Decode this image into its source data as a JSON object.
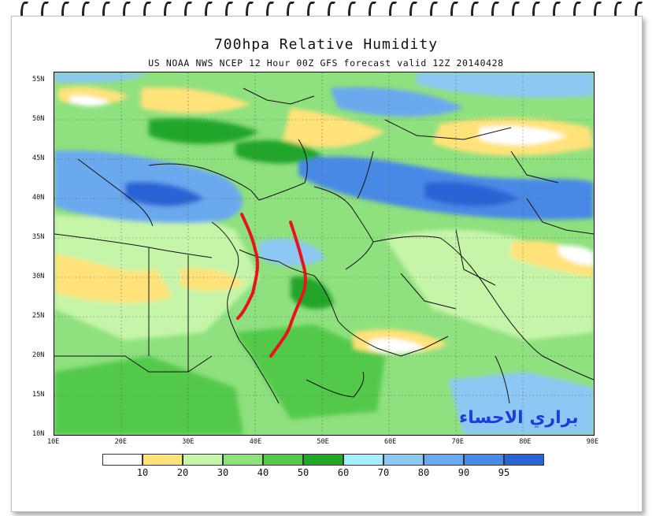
{
  "title": "700hpa Relative Humidity",
  "subtitle": "US NOAA NWS NCEP 12 Hour 00Z GFS forecast valid 12Z 20140428",
  "watermark": "براري الاحساء",
  "lat_labels": [
    "55N",
    "50N",
    "45N",
    "40N",
    "35N",
    "30N",
    "25N",
    "20N",
    "15N",
    "10N"
  ],
  "lon_labels": [
    "10E",
    "20E",
    "30E",
    "40E",
    "50E",
    "60E",
    "70E",
    "80E",
    "90E"
  ],
  "legend": {
    "colors": [
      "#ffffff",
      "#ffe27a",
      "#c6f5a9",
      "#8fe07e",
      "#52c94c",
      "#23a62a",
      "#a9ecfb",
      "#8dc7f4",
      "#6aa9ee",
      "#4a89e6",
      "#2c64d6"
    ],
    "labels": [
      "10",
      "20",
      "30",
      "40",
      "50",
      "60",
      "70",
      "80",
      "90",
      "95"
    ]
  },
  "colors": {
    "dry": "#ffe27a",
    "moist": "#52c94c",
    "saturated": "#2c64d6",
    "annotation": "#e8141c"
  }
}
